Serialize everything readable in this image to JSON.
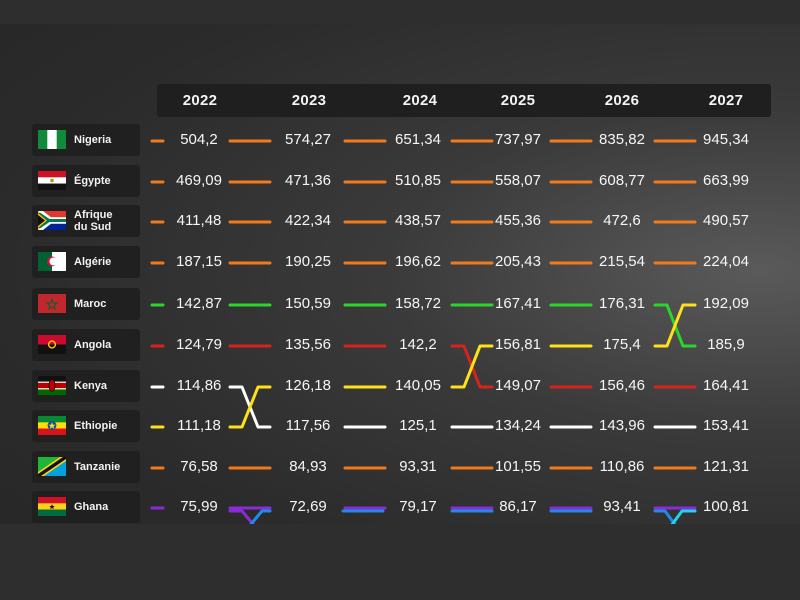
{
  "colors": {
    "orange": "#f07a1c",
    "green": "#2ad62a",
    "red": "#d8231c",
    "yellow": "#ffe11a",
    "white": "#ffffff",
    "purple": "#8a2cd6",
    "blue": "#1e8be6",
    "cyan": "#22d2ea"
  },
  "chart_data": {
    "type": "table",
    "years": [
      "2022",
      "2023",
      "2024",
      "2025",
      "2026",
      "2027"
    ],
    "rows": [
      {
        "country": "Nigeria",
        "flag": "ng-flag",
        "color": "orange",
        "values": [
          "504,2",
          "574,27",
          "651,34",
          "737,97",
          "835,82",
          "945,34"
        ]
      },
      {
        "country": "Égypte",
        "flag": "eg-flag",
        "color": "orange",
        "values": [
          "469,09",
          "471,36",
          "510,85",
          "558,07",
          "608,77",
          "663,99"
        ]
      },
      {
        "country": "Afrique du Sud",
        "flag": "za-flag",
        "color": "orange",
        "values": [
          "411,48",
          "422,34",
          "438,57",
          "455,36",
          "472,6",
          "490,57"
        ]
      },
      {
        "country": "Algérie",
        "flag": "dz-flag",
        "color": "orange",
        "values": [
          "187,15",
          "190,25",
          "196,62",
          "205,43",
          "215,54",
          "224,04"
        ]
      },
      {
        "country": "Maroc",
        "flag": "ma-flag",
        "color": "green",
        "values": [
          "142,87",
          "150,59",
          "158,72",
          "167,41",
          "176,31",
          "185,9"
        ]
      },
      {
        "country": "Angola",
        "flag": "ao-flag",
        "color": "red",
        "values": [
          "124,79",
          "135,56",
          "142,2",
          "149,07",
          "156,46",
          "164,41"
        ]
      },
      {
        "country": "Kenya",
        "flag": "ke-flag",
        "color": "white",
        "values": [
          "114,86",
          "117,56",
          "125,1",
          "134,24",
          "143,96",
          "153,41"
        ]
      },
      {
        "country": "Ethiopie",
        "flag": "et-flag",
        "color": "yellow",
        "values": [
          "111,18",
          "126,18",
          "140,05",
          "156,81",
          "175,4",
          "192,09"
        ]
      },
      {
        "country": "Tanzanie",
        "flag": "tz-flag",
        "color": "orange",
        "values": [
          "76,58",
          "84,93",
          "93,31",
          "101,55",
          "110,86",
          "121,31"
        ]
      },
      {
        "country": "Ghana",
        "flag": "gh-flag",
        "color": "purple",
        "values": [
          "75,99",
          "72,69",
          "79,17",
          "86,17",
          "93,41",
          "100,81"
        ]
      }
    ],
    "grid": [
      [
        "Nigeria",
        "Nigeria",
        "Nigeria",
        "Nigeria",
        "Nigeria",
        "Nigeria"
      ],
      [
        "Égypte",
        "Égypte",
        "Égypte",
        "Égypte",
        "Égypte",
        "Égypte"
      ],
      [
        "Afrique du Sud",
        "Afrique du Sud",
        "Afrique du Sud",
        "Afrique du Sud",
        "Afrique du Sud",
        "Afrique du Sud"
      ],
      [
        "Algérie",
        "Algérie",
        "Algérie",
        "Algérie",
        "Algérie",
        "Algérie"
      ],
      [
        "Maroc",
        "Maroc",
        "Maroc",
        "Maroc",
        "Maroc",
        "Ethiopie"
      ],
      [
        "Angola",
        "Angola",
        "Angola",
        "Ethiopie",
        "Ethiopie",
        "Maroc"
      ],
      [
        "Kenya",
        "Ethiopie",
        "Ethiopie",
        "Angola",
        "Angola",
        "Angola"
      ],
      [
        "Ethiopie",
        "Kenya",
        "Kenya",
        "Kenya",
        "Kenya",
        "Kenya"
      ],
      [
        "Tanzanie",
        "Tanzanie",
        "Tanzanie",
        "Tanzanie",
        "Tanzanie",
        "Tanzanie"
      ],
      [
        "Ghana",
        "Ghana",
        "Ghana",
        "Ghana",
        "Ghana",
        "Ghana"
      ]
    ],
    "legend": "none",
    "grid_lines": false
  }
}
